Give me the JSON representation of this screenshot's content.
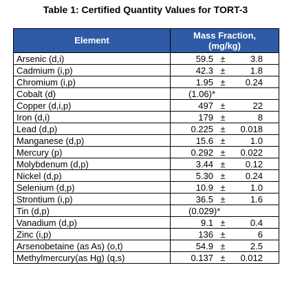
{
  "title": "Table 1: Certified Quantity Values for TORT-3",
  "table": {
    "headers": {
      "element": "Element",
      "value_line1": "Mass Fraction,",
      "value_line2": "(mg/kg)"
    },
    "pm_sign": "±",
    "rows": [
      {
        "element": "Arsenic (d,i)",
        "value": "59.5",
        "uncertainty": "3.8"
      },
      {
        "element": "Cadmium (i,p)",
        "value": "42.3",
        "uncertainty": "1.8"
      },
      {
        "element": "Chromium (i,p)",
        "value": "1.95",
        "uncertainty": "0.24"
      },
      {
        "element": "Cobalt (d)",
        "value": "(1.06)*",
        "uncertainty": ""
      },
      {
        "element": "Copper (d,i,p)",
        "value": "497",
        "uncertainty": "22"
      },
      {
        "element": "Iron (d,i)",
        "value": "179",
        "uncertainty": "8"
      },
      {
        "element": "Lead (d,p)",
        "value": "0.225",
        "uncertainty": "0.018"
      },
      {
        "element": "Manganese (d,p)",
        "value": "15.6",
        "uncertainty": "1.0"
      },
      {
        "element": "Mercury (p)",
        "value": "0.292",
        "uncertainty": "0.022"
      },
      {
        "element": "Molybdenum (d,p)",
        "value": "3.44",
        "uncertainty": "0.12"
      },
      {
        "element": "Nickel (d,p)",
        "value": "5.30",
        "uncertainty": "0.24"
      },
      {
        "element": "Selenium (d,p)",
        "value": "10.9",
        "uncertainty": "1.0"
      },
      {
        "element": "Strontium (i,p)",
        "value": "36.5",
        "uncertainty": "1.6"
      },
      {
        "element": "Tin (d,p)",
        "value": "(0.029)*",
        "uncertainty": ""
      },
      {
        "element": "Vanadium (d,p)",
        "value": "9.1",
        "uncertainty": "0.4"
      },
      {
        "element": "Zinc (i,p)",
        "value": "136",
        "uncertainty": "6"
      },
      {
        "element": "Arsenobetaine (as As) (o,t)",
        "value": "54.9",
        "uncertainty": "2.5"
      },
      {
        "element": "Methylmercury(as Hg) (q,s)",
        "value": "0.137",
        "uncertainty": "0.012"
      }
    ]
  }
}
